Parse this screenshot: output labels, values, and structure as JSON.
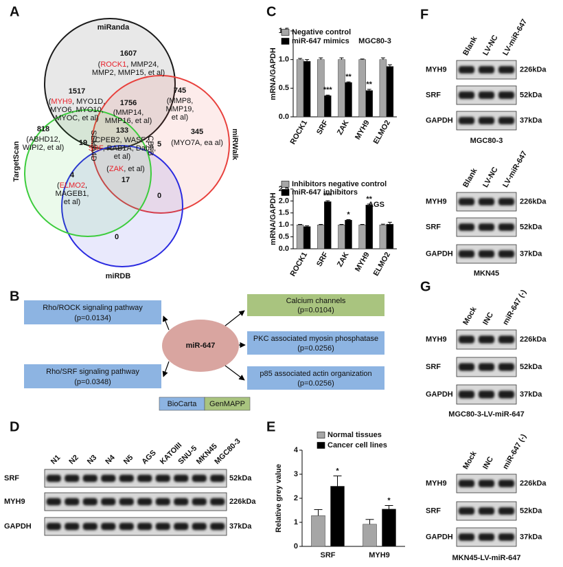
{
  "panel_labels": [
    "A",
    "B",
    "C",
    "D",
    "E",
    "F",
    "G"
  ],
  "venn": {
    "sets": [
      {
        "name": "miRanda",
        "color": "#1a1a1a"
      },
      {
        "name": "miRWalk",
        "color": "#e8403c"
      },
      {
        "name": "miRDB",
        "color": "#2a2ae0"
      },
      {
        "name": "TargetScan",
        "color": "#3ccc3c"
      }
    ],
    "regions": [
      {
        "count": 1607,
        "lines": [
          [
            {
              "text": "("
            },
            {
              "text": "ROCK1",
              "color": "#e8202a"
            },
            {
              "text": ", MMP24,"
            }
          ],
          [
            {
              "text": "MMP2, MMP15, et al)"
            }
          ]
        ]
      },
      {
        "count": 1517,
        "lines": [
          [
            {
              "text": "("
            },
            {
              "text": "MYH9",
              "color": "#e8202a"
            },
            {
              "text": ", MYO1D,"
            }
          ],
          [
            {
              "text": "MYO6, MYO10,"
            }
          ],
          [
            {
              "text": "MYOC, et al)"
            }
          ]
        ]
      },
      {
        "count": 1756,
        "lines": [
          [
            {
              "text": "(MMP14,"
            }
          ],
          [
            {
              "text": "MMP16, et al)"
            }
          ]
        ]
      },
      {
        "count": 745,
        "lines": [
          [
            {
              "text": "(MMP8,"
            }
          ],
          [
            {
              "text": "MMP19,"
            }
          ],
          [
            {
              "text": "et al)"
            }
          ]
        ]
      },
      {
        "count": 818,
        "lines": [
          [
            {
              "text": "(ABHD12,"
            }
          ],
          [
            {
              "text": "WIPI2, et al)"
            }
          ]
        ]
      },
      {
        "count": 345,
        "lines": [
          [
            {
              "text": "(MYO7A, ea al)"
            }
          ]
        ]
      },
      {
        "count": 133,
        "lines": [
          [
            {
              "text": "(CPEB2, WASF2,"
            }
          ],
          [
            {
              "text": "SRF",
              "color": "#e8202a"
            },
            {
              "text": ", RAB1A, Dab2,"
            }
          ],
          [
            {
              "text": "et al)"
            }
          ]
        ]
      },
      {
        "count": 19,
        "label": "SEMA4D",
        "lines": []
      },
      {
        "count": 5,
        "label": "CBFB",
        "lines": []
      },
      {
        "count": 4,
        "lines": [
          [
            {
              "text": "("
            },
            {
              "text": "ELMO2",
              "color": "#e8202a"
            },
            {
              "text": ","
            }
          ],
          [
            {
              "text": "MAGEB1,"
            }
          ],
          [
            {
              "text": "et al)"
            }
          ]
        ]
      },
      {
        "count": 17,
        "lines": [
          [
            {
              "text": "("
            },
            {
              "text": "ZAK",
              "color": "#e8202a"
            },
            {
              "text": ", et al)"
            }
          ]
        ]
      },
      {
        "count": 0,
        "lines": []
      },
      {
        "count": 0,
        "lines": []
      }
    ]
  },
  "pathways": {
    "center": "miR-647",
    "items": [
      {
        "name": "Rho/ROCK signaling pathway",
        "p": "(p=0.0134)",
        "source": "BioCarta"
      },
      {
        "name": "Rho/SRF signaling pathway",
        "p": "(p=0.0348)",
        "source": "BioCarta"
      },
      {
        "name": "Calcium channels",
        "p": "(p=0.0104)",
        "source": "GenMAPP"
      },
      {
        "name": "PKC associated  myosin phosphatase",
        "p": "(p=0.0256)",
        "source": "BioCarta"
      },
      {
        "name": "p85 associated actin organization",
        "p": "(p=0.0256)",
        "source": "BioCarta"
      }
    ],
    "legend": [
      {
        "name": "BioCarta",
        "color": "#8db4e2"
      },
      {
        "name": "GenMAPP",
        "color": "#a9c47f"
      }
    ]
  },
  "blots": [
    {
      "lanes": [
        "N1",
        "N2",
        "N3",
        "N4",
        "N5",
        "AGS",
        "KATOIII",
        "SNU-5",
        "MKN45",
        "MGC80-3"
      ],
      "rows": [
        {
          "protein": "SRF",
          "size": "52kDa"
        },
        {
          "protein": "MYH9",
          "size": "226kDa"
        },
        {
          "protein": "GAPDH",
          "size": "37kDa"
        }
      ]
    },
    {
      "lanes": [
        "Blank",
        "LV-NC",
        "LV-miR-647"
      ],
      "rows": [
        {
          "protein": "MYH9",
          "size": "226kDa"
        },
        {
          "protein": "SRF",
          "size": "52kDa"
        },
        {
          "protein": "GAPDH",
          "size": "37kDa"
        }
      ],
      "caption": "MGC80-3"
    },
    {
      "lanes": [
        "Blank",
        "LV-NC",
        "LV-miR-647"
      ],
      "rows": [
        {
          "protein": "MYH9",
          "size": "226kDa"
        },
        {
          "protein": "SRF",
          "size": "52kDa"
        },
        {
          "protein": "GAPDH",
          "size": "37kDa"
        }
      ],
      "caption": "MKN45"
    },
    {
      "lanes": [
        "Mock",
        "INC",
        "miR-647 (-)"
      ],
      "rows": [
        {
          "protein": "MYH9",
          "size": "226kDa"
        },
        {
          "protein": "SRF",
          "size": "52kDa"
        },
        {
          "protein": "GAPDH",
          "size": "37kDa"
        }
      ],
      "caption": "MGC80-3-LV-miR-647"
    },
    {
      "lanes": [
        "Mock",
        "INC",
        "miR-647 (-)"
      ],
      "rows": [
        {
          "protein": "MYH9",
          "size": "226kDa"
        },
        {
          "protein": "SRF",
          "size": "52kDa"
        },
        {
          "protein": "GAPDH",
          "size": "37kDa"
        }
      ],
      "caption": "MKN45-LV-miR-647"
    }
  ],
  "chart_data": [
    {
      "type": "bar",
      "annotation": "MGC80-3",
      "ylabel": "mRNA/GAPDH",
      "categories": [
        "ROCK1",
        "SRF",
        "ZAK",
        "MYH9",
        "ELMO2"
      ],
      "series": [
        {
          "name": "Negative control",
          "color": "#a6a6a6",
          "values": [
            1.0,
            1.0,
            1.0,
            1.0,
            1.0
          ],
          "errors": [
            0.02,
            0.03,
            0.03,
            0.01,
            0.03
          ]
        },
        {
          "name": "miR-647 mimics",
          "color": "#000000",
          "values": [
            0.97,
            0.37,
            0.6,
            0.46,
            0.88
          ],
          "errors": [
            0.03,
            0.01,
            0.01,
            0.02,
            0.03
          ],
          "significance": [
            null,
            "***",
            "**",
            "**",
            null
          ]
        }
      ],
      "ylim": [
        0,
        1.5
      ],
      "yticks": [
        {
          "value": 0,
          "label": "0.0"
        },
        0.5,
        {
          "value": 1,
          "label": "1.0"
        },
        1.5
      ]
    },
    {
      "type": "bar",
      "annotation": "AGS",
      "ylabel": "mRNA/GAPDH",
      "categories": [
        "ROCK1",
        "SRF",
        "ZAK",
        "MYH9",
        "ELMO2"
      ],
      "series": [
        {
          "name": "Inhibitors negative control",
          "color": "#a6a6a6",
          "values": [
            1.0,
            1.0,
            1.0,
            1.0,
            1.0
          ],
          "errors": [
            0.02,
            0.02,
            0.02,
            0.02,
            0.03
          ]
        },
        {
          "name": "miR-647 inhibitors",
          "color": "#000000",
          "values": [
            0.93,
            1.97,
            1.2,
            1.83,
            1.03
          ],
          "errors": [
            0.03,
            0.04,
            0.02,
            0.04,
            0.08
          ],
          "significance": [
            null,
            "***",
            "*",
            "**",
            null
          ]
        }
      ],
      "ylim": [
        0,
        2.5
      ],
      "yticks": [
        {
          "value": 0,
          "label": "0.0"
        },
        0.5,
        {
          "value": 1,
          "label": "1.0"
        },
        1.5,
        {
          "value": 2,
          "label": "2.0"
        },
        2.5
      ]
    },
    {
      "type": "bar",
      "ylabel": "Relative grey value",
      "categories": [
        "SRF",
        "MYH9"
      ],
      "series": [
        {
          "name": "Normal tissues",
          "color": "#a6a6a6",
          "values": [
            1.28,
            0.92
          ],
          "errors": [
            0.25,
            0.2
          ]
        },
        {
          "name": "Cancer cell lines",
          "color": "#000000",
          "values": [
            2.5,
            1.55
          ],
          "errors": [
            0.43,
            0.15
          ],
          "significance": [
            "*",
            "*"
          ]
        }
      ],
      "ylim": [
        0,
        4
      ],
      "yticks": [
        0,
        1,
        2,
        3,
        4
      ]
    }
  ]
}
